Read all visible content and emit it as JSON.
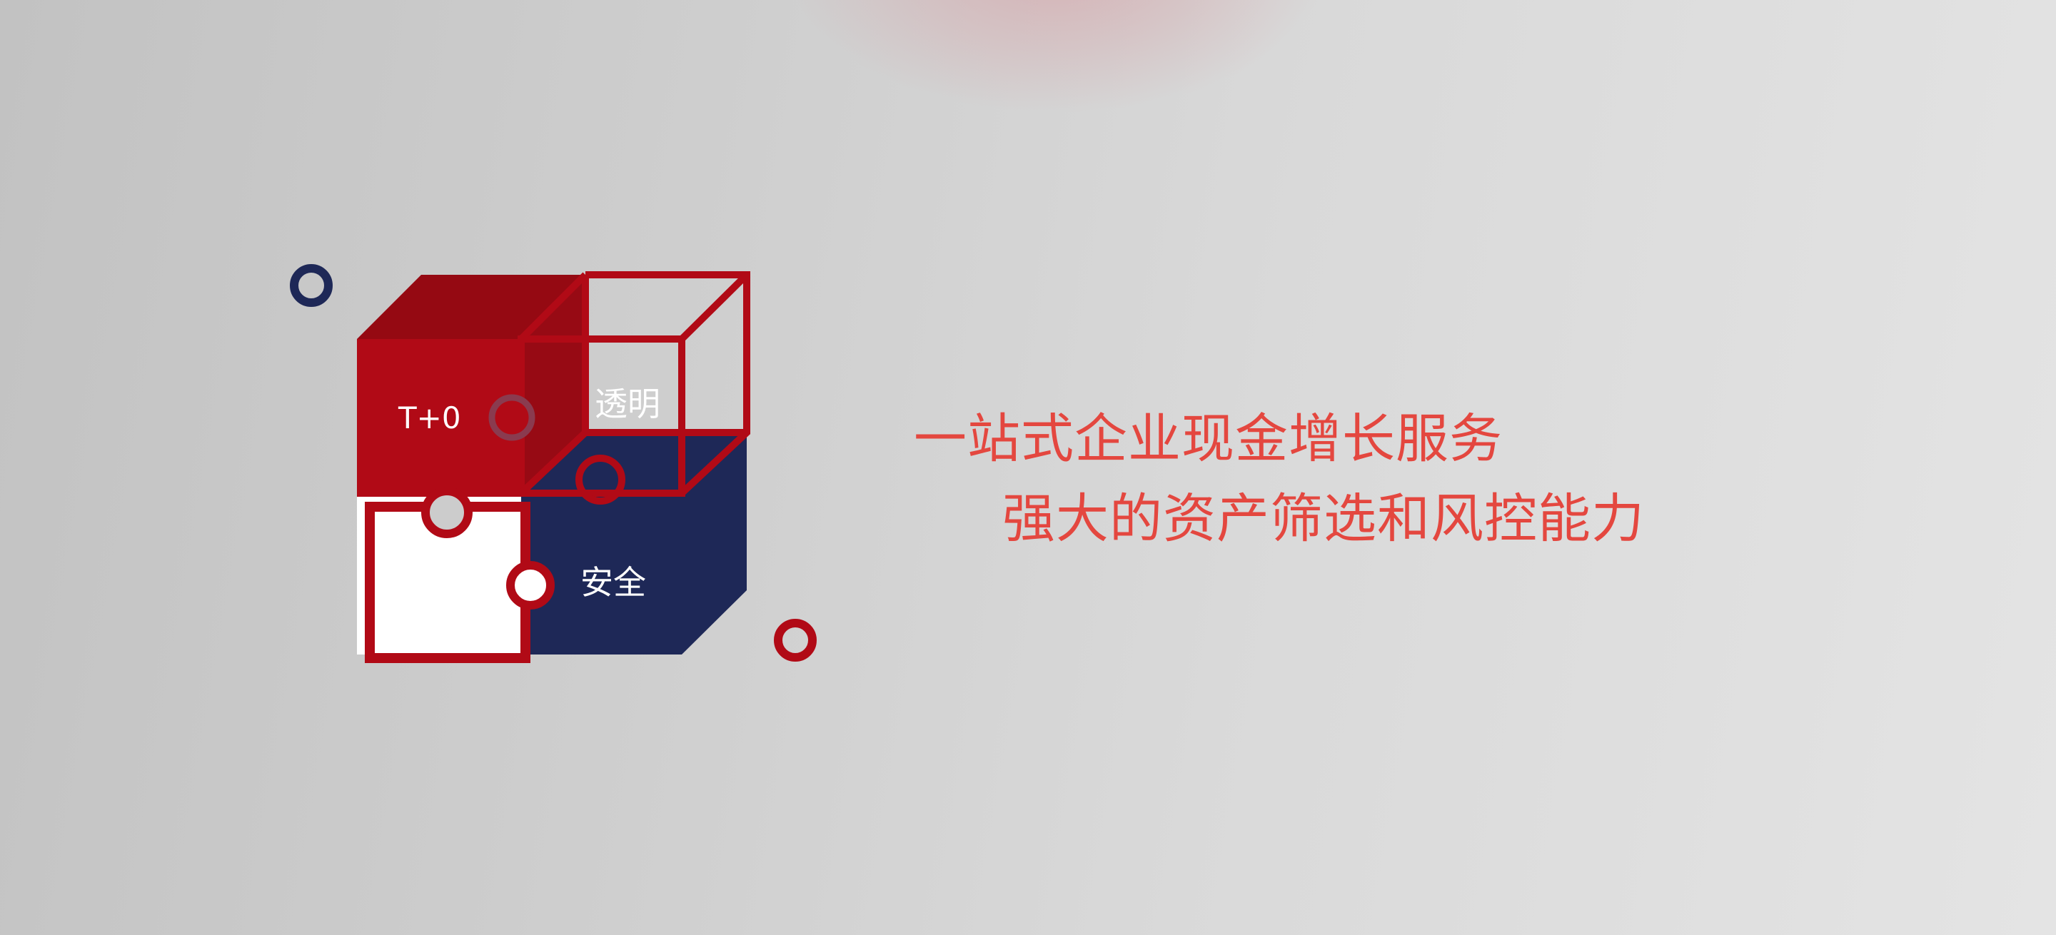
{
  "banner": {
    "cube_labels": {
      "top_left": "T+0",
      "top_right": "透明",
      "bottom_right": "安全"
    },
    "slogan": {
      "line_1": "一站式企业现金增长服务",
      "line_2": "强大的资产筛选和风控能力"
    }
  },
  "colors": {
    "brand_red": "#b10a16",
    "dark_red": "#8e0a13",
    "navy": "#1e2857",
    "slogan_red": "#e4473f",
    "white": "#ffffff"
  }
}
